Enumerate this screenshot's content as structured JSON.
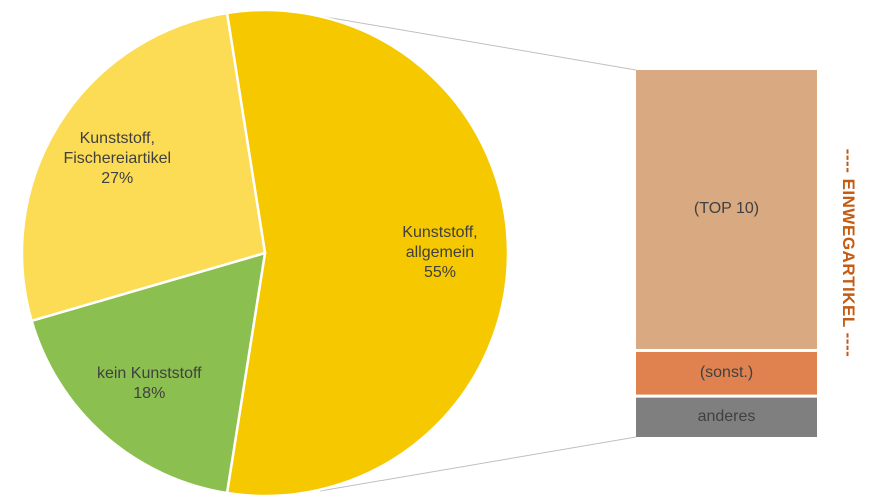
{
  "chart_data": {
    "type": "pie-of-bar",
    "side_title": "---- EINWEGARTIKEL ----",
    "side_title_color": "#c55a11",
    "series": [
      {
        "name": "Kunststoff, allgemein",
        "value": 55,
        "value_label": "55%",
        "color": "#f5c800"
      },
      {
        "name": "kein Kunststoff",
        "value": 18,
        "value_label": "18%",
        "color": "#8bbf4f"
      },
      {
        "name": "Kunststoff, Fischereiartikel",
        "value": 27,
        "value_label": "27%",
        "color": "#fbdc54"
      }
    ],
    "bar": [
      {
        "name": "(TOP 10)",
        "value": 42.5,
        "color": "#d9a982"
      },
      {
        "name": "(sonst.)",
        "value": 6.5,
        "color": "#df8250"
      },
      {
        "name": "anderes",
        "value": 6,
        "color": "#7f7f7f"
      }
    ]
  }
}
